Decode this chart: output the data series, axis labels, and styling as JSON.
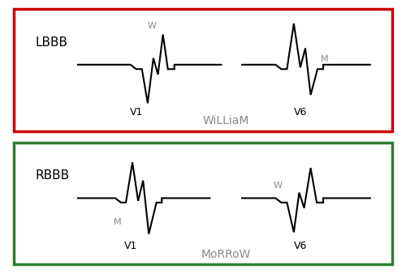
{
  "lbbb_label": "LBBB",
  "rbbb_label": "RBBB",
  "william_text": "WiLLiaM",
  "morrow_text": "MoRRoW",
  "v1_label": "V1",
  "v6_label": "V6",
  "red_box_color": "#cc0000",
  "green_box_color": "#2e7d32",
  "bg_color": "#ffffff",
  "text_color": "#000000",
  "mnemonic_color": "#888888",
  "lw": 1.5,
  "lbbb_v1_x": [
    0,
    1.4,
    1.55,
    1.7,
    1.85,
    2.0,
    2.12,
    2.25,
    2.38,
    2.55,
    2.55,
    3.8
  ],
  "lbbb_v1_y": [
    0,
    0,
    -0.08,
    -0.08,
    -0.7,
    0.12,
    -0.18,
    0.55,
    -0.08,
    -0.08,
    0,
    0
  ],
  "lbbb_v6_x": [
    0,
    0.9,
    1.05,
    1.2,
    1.38,
    1.55,
    1.68,
    1.82,
    2.0,
    2.15,
    2.15,
    3.4
  ],
  "lbbb_v6_y": [
    0,
    0,
    -0.08,
    -0.08,
    0.75,
    -0.05,
    0.3,
    -0.55,
    -0.08,
    -0.08,
    0,
    0
  ],
  "rbbb_v1_x": [
    0,
    1.0,
    1.15,
    1.28,
    1.45,
    1.6,
    1.73,
    1.88,
    2.08,
    2.22,
    2.22,
    3.5
  ],
  "rbbb_v1_y": [
    0,
    0,
    -0.08,
    -0.08,
    0.65,
    -0.05,
    0.32,
    -0.65,
    -0.08,
    -0.08,
    0,
    0
  ],
  "rbbb_v6_x": [
    0,
    0.9,
    1.05,
    1.2,
    1.38,
    1.52,
    1.65,
    1.82,
    1.98,
    2.15,
    2.15,
    3.4
  ],
  "rbbb_v6_y": [
    0,
    0,
    -0.08,
    -0.08,
    -0.62,
    0.1,
    -0.18,
    0.55,
    -0.08,
    -0.08,
    0,
    0
  ]
}
